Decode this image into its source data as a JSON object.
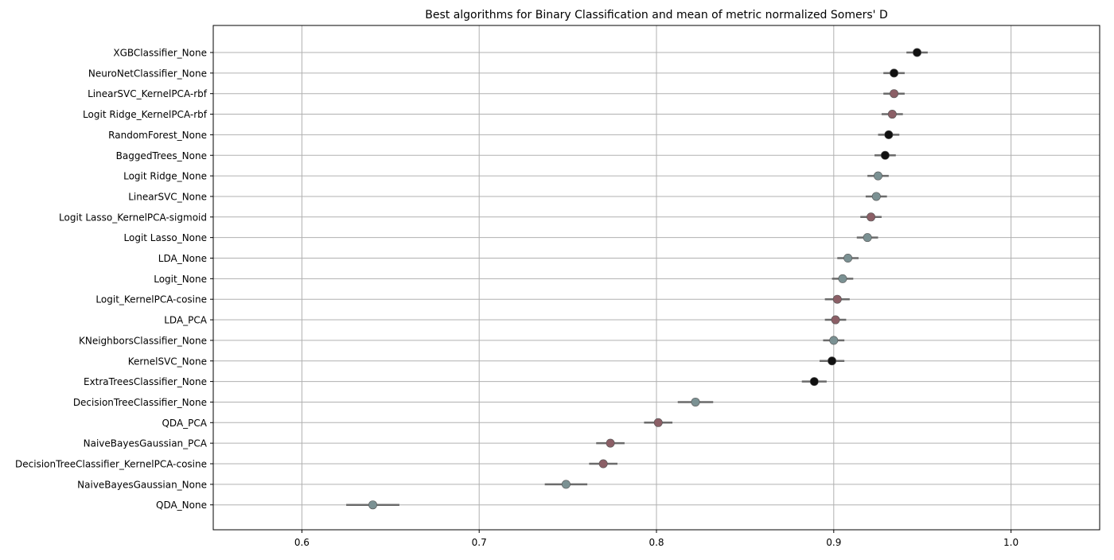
{
  "chart_data": {
    "type": "scatter",
    "title": "Best algorithms for Binary Classification and mean of metric normalized Somers' D",
    "xlabel": "",
    "ylabel": "",
    "xlim": [
      0.55,
      1.05
    ],
    "xticks": [
      "0.6",
      "0.7",
      "0.8",
      "0.9",
      "1.0"
    ],
    "grid": true,
    "colors": {
      "black": "#111111",
      "mauve": "#8b5f66",
      "slate": "#7b9193",
      "errorbar": "#6b6b6b",
      "grid": "#b0b0b0"
    },
    "categories": [
      "XGBClassifier_None",
      "NeuroNetClassifier_None",
      "LinearSVC_KernelPCA-rbf",
      "Logit Ridge_KernelPCA-rbf",
      "RandomForest_None",
      "BaggedTrees_None",
      "Logit Ridge_None",
      "LinearSVC_None",
      "Logit Lasso_KernelPCA-sigmoid",
      "Logit Lasso_None",
      "LDA_None",
      "Logit_None",
      "Logit_KernelPCA-cosine",
      "LDA_PCA",
      "KNeighborsClassifier_None",
      "KernelSVC_None",
      "ExtraTreesClassifier_None",
      "DecisionTreeClassifier_None",
      "QDA_PCA",
      "NaiveBayesGaussian_PCA",
      "DecisionTreeClassifier_KernelPCA-cosine",
      "NaiveBayesGaussian_None",
      "QDA_None"
    ],
    "values": [
      0.947,
      0.934,
      0.934,
      0.933,
      0.931,
      0.929,
      0.925,
      0.924,
      0.921,
      0.919,
      0.908,
      0.905,
      0.902,
      0.901,
      0.9,
      0.899,
      0.889,
      0.822,
      0.801,
      0.774,
      0.77,
      0.749,
      0.64
    ],
    "errors": [
      0.006,
      0.006,
      0.006,
      0.006,
      0.006,
      0.006,
      0.006,
      0.006,
      0.006,
      0.006,
      0.006,
      0.006,
      0.007,
      0.006,
      0.006,
      0.007,
      0.007,
      0.01,
      0.008,
      0.008,
      0.008,
      0.012,
      0.015
    ],
    "point_colors": [
      "black",
      "black",
      "mauve",
      "mauve",
      "black",
      "black",
      "slate",
      "slate",
      "mauve",
      "slate",
      "slate",
      "slate",
      "mauve",
      "mauve",
      "slate",
      "black",
      "black",
      "slate",
      "mauve",
      "mauve",
      "mauve",
      "slate",
      "slate"
    ]
  }
}
